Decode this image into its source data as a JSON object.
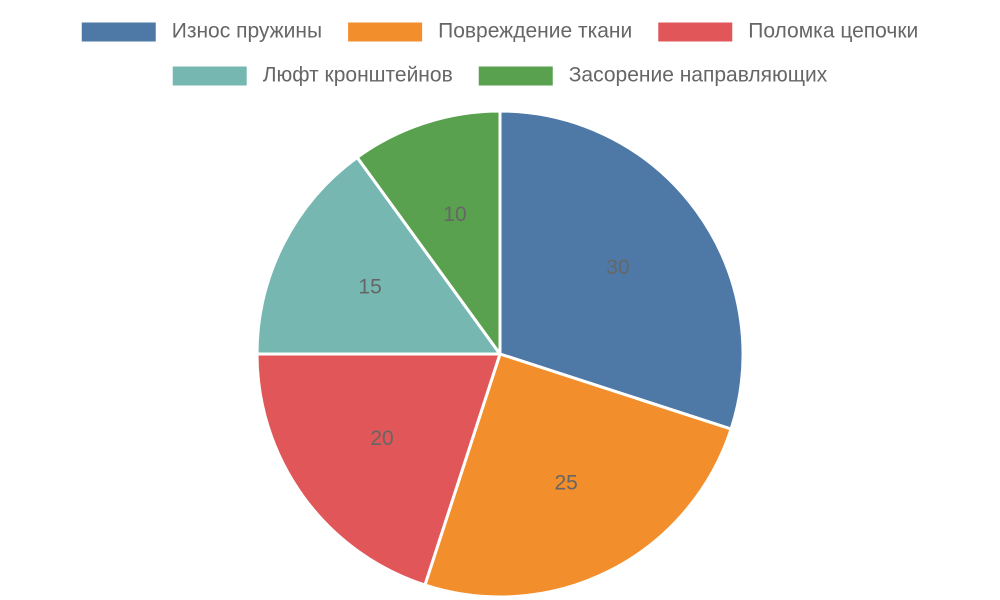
{
  "chart_data": {
    "type": "pie",
    "title": "",
    "categories": [
      "Износ пружины",
      "Повреждение ткани",
      "Поломка цепочки",
      "Люфт кронштейнов",
      "Засорение направляющих"
    ],
    "values": [
      30,
      25,
      20,
      15,
      10
    ],
    "colors": [
      "#4e79a7",
      "#f28e2b",
      "#e15759",
      "#76b7b2",
      "#59a14f"
    ],
    "start": "12 o'clock, clockwise",
    "legend_position": "top-center",
    "data_labels": true
  }
}
